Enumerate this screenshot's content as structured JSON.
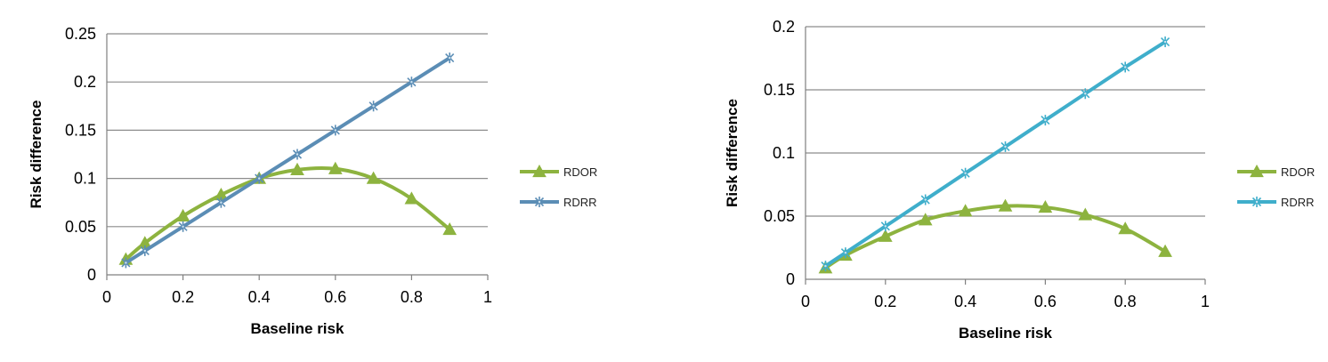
{
  "chart_data": [
    {
      "type": "line",
      "title": "",
      "xlabel": "Baseline risk",
      "ylabel": "Risk difference",
      "xlim": [
        0,
        1
      ],
      "ylim": [
        0,
        0.25
      ],
      "x_ticks": [
        "0",
        "0.2",
        "0.4",
        "0.6",
        "0.8",
        "1"
      ],
      "y_ticks": [
        "0",
        "0.05",
        "0.1",
        "0.15",
        "0.2",
        "0.25"
      ],
      "grid": "horizontal",
      "legend_position": "right",
      "series": [
        {
          "name": "RDOR",
          "marker": "triangle",
          "color": "#8DB33F",
          "x": [
            0.05,
            0.1,
            0.2,
            0.3,
            0.4,
            0.5,
            0.6,
            0.7,
            0.8,
            0.9
          ],
          "values": [
            0.016,
            0.033,
            0.061,
            0.083,
            0.1,
            0.109,
            0.11,
            0.1,
            0.079,
            0.047
          ]
        },
        {
          "name": "RDRR",
          "marker": "asterisk",
          "color": "#5B8DB5",
          "x": [
            0.05,
            0.1,
            0.2,
            0.3,
            0.4,
            0.5,
            0.6,
            0.7,
            0.8,
            0.9
          ],
          "values": [
            0.0125,
            0.025,
            0.05,
            0.075,
            0.1,
            0.125,
            0.15,
            0.175,
            0.2,
            0.225
          ]
        }
      ]
    },
    {
      "type": "line",
      "title": "",
      "xlabel": "Baseline risk",
      "ylabel": "Risk difference",
      "xlim": [
        0,
        1
      ],
      "ylim": [
        0,
        0.2
      ],
      "x_ticks": [
        "0",
        "0.2",
        "0.4",
        "0.6",
        "0.8",
        "1"
      ],
      "y_ticks": [
        "0",
        "0.05",
        "0.1",
        "0.15",
        "0.2"
      ],
      "grid": "horizontal",
      "legend_position": "right",
      "series": [
        {
          "name": "RDOR",
          "marker": "triangle",
          "color": "#8DB33F",
          "x": [
            0.05,
            0.1,
            0.2,
            0.3,
            0.4,
            0.5,
            0.6,
            0.7,
            0.8,
            0.9
          ],
          "values": [
            0.009,
            0.019,
            0.034,
            0.047,
            0.054,
            0.058,
            0.057,
            0.051,
            0.04,
            0.022
          ]
        },
        {
          "name": "RDRR",
          "marker": "asterisk",
          "color": "#3FAECB",
          "x": [
            0.05,
            0.1,
            0.2,
            0.3,
            0.4,
            0.5,
            0.6,
            0.7,
            0.8,
            0.9
          ],
          "values": [
            0.0105,
            0.021,
            0.042,
            0.063,
            0.084,
            0.105,
            0.126,
            0.147,
            0.168,
            0.188
          ]
        }
      ]
    }
  ]
}
